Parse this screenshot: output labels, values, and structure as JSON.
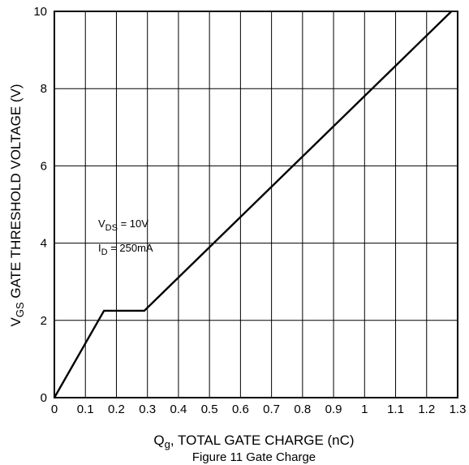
{
  "chart_data": {
    "type": "line",
    "title": "Figure 11 Gate Charge",
    "xlabel": {
      "main": "Q",
      "sub": "g",
      "rest": ", TOTAL GATE CHARGE (nC)"
    },
    "ylabel": {
      "main": "V",
      "sub": "GS",
      "rest": " GATE THRESHOLD VOLTAGE (V)"
    },
    "xlim": [
      0,
      1.3
    ],
    "ylim": [
      0,
      10
    ],
    "x_ticks": [
      0,
      0.1,
      0.2,
      0.3,
      0.4,
      0.5,
      0.6,
      0.7,
      0.8,
      0.9,
      1,
      1.1,
      1.2,
      1.3
    ],
    "x_tick_labels": [
      "0",
      "0.1",
      "0.2",
      "0.3",
      "0.4",
      "0.5",
      "0.6",
      "0.7",
      "0.8",
      "0.9",
      "1",
      "1.1",
      "1.2",
      "1.3"
    ],
    "y_ticks": [
      0,
      2,
      4,
      6,
      8,
      10
    ],
    "y_tick_labels": [
      "0",
      "2",
      "4",
      "6",
      "8",
      "10"
    ],
    "grid": true,
    "series": [
      {
        "x": [
          0,
          0.16,
          0.29,
          1.28
        ],
        "y": [
          0,
          2.25,
          2.25,
          10
        ]
      }
    ],
    "annotations": [
      {
        "main": "V",
        "sub": "DS",
        "rest": " = 10V"
      },
      {
        "main": "I",
        "sub": "D",
        "rest": " = 250mA"
      }
    ],
    "colors": {
      "line": "#000000",
      "grid": "#000000"
    }
  }
}
